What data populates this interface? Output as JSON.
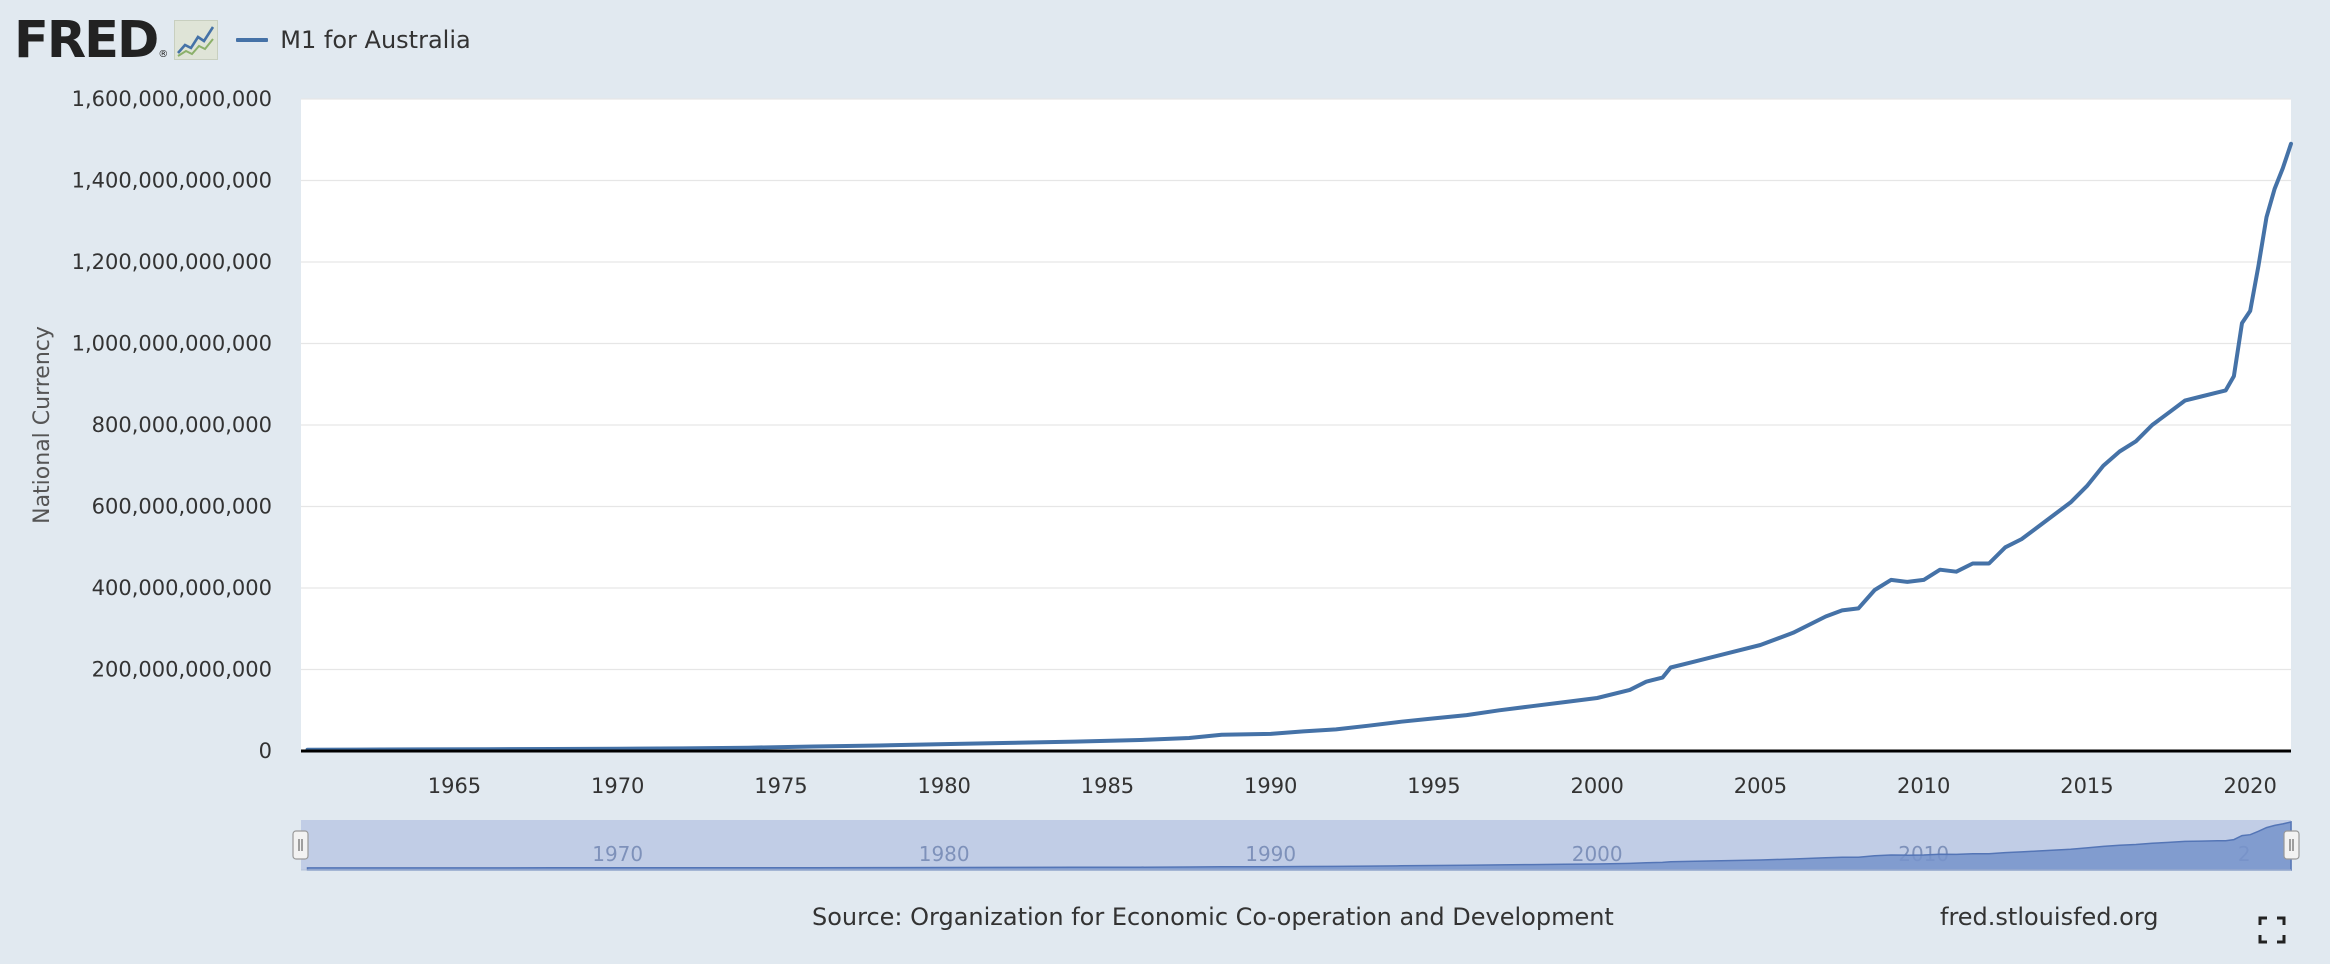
{
  "header": {
    "logo_text": "FRED",
    "logo_reg": "®",
    "logo_icon": "line-chart-icon",
    "legend_label": "M1 for Australia",
    "series_color": "#4572a7"
  },
  "footer": {
    "source": "Source: Organization for Economic Co-operation and Development",
    "url": "fred.stlouisfed.org",
    "fullscreen_icon": "fullscreen-icon"
  },
  "navigator": {
    "tick_labels": [
      "1970",
      "1980",
      "1990",
      "2000",
      "2010",
      "2"
    ],
    "handle_icon": "drag-handle-icon"
  },
  "chart_data": {
    "type": "line",
    "title": "",
    "xlabel": "",
    "ylabel": "National Currency",
    "x_range": [
      1960.3,
      2021.25
    ],
    "y_range": [
      0,
      1600000000000
    ],
    "y_ticks": [
      0,
      200000000000,
      400000000000,
      600000000000,
      800000000000,
      1000000000000,
      1200000000000,
      1400000000000,
      1600000000000
    ],
    "y_tick_labels": [
      "0",
      "200,000,000,000",
      "400,000,000,000",
      "600,000,000,000",
      "800,000,000,000",
      "1,000,000,000,000",
      "1,200,000,000,000",
      "1,400,000,000,000",
      "1,600,000,000,000"
    ],
    "x_ticks": [
      1965,
      1970,
      1975,
      1980,
      1985,
      1990,
      1995,
      2000,
      2005,
      2010,
      2015,
      2020
    ],
    "x_tick_labels": [
      "1965",
      "1970",
      "1975",
      "1980",
      "1985",
      "1990",
      "1995",
      "2000",
      "2005",
      "2010",
      "2015",
      "2020"
    ],
    "grid": "horizontal",
    "legend_position": "top-left",
    "colors": {
      "series": "#4572a7",
      "zero_line": "#000000"
    },
    "series": [
      {
        "name": "M1 for Australia",
        "x": [
          1960.5,
          1962,
          1964,
          1966,
          1968,
          1970,
          1972,
          1974,
          1976,
          1978,
          1980,
          1982,
          1984,
          1986,
          1987.5,
          1988.5,
          1990,
          1991,
          1992,
          1993,
          1994,
          1995,
          1996,
          1997,
          1998,
          1999,
          2000,
          2001,
          2001.5,
          2002,
          2002.25,
          2003,
          2004,
          2005,
          2006,
          2007,
          2007.5,
          2008,
          2008.5,
          2009,
          2009.5,
          2010,
          2010.5,
          2011,
          2011.5,
          2012,
          2012.5,
          2013,
          2013.5,
          2014,
          2014.5,
          2015,
          2015.5,
          2016,
          2016.5,
          2017,
          2017.5,
          2018,
          2018.5,
          2019,
          2019.25,
          2019.5,
          2019.75,
          2020,
          2020.25,
          2020.5,
          2020.75,
          2021,
          2021.25
        ],
        "y": [
          3000000000,
          3400000000,
          3900000000,
          4400000000,
          4900000000,
          5600000000,
          6500000000,
          8000000000,
          11000000000,
          13500000000,
          17000000000,
          20000000000,
          23000000000,
          27000000000,
          32000000000,
          40000000000,
          42000000000,
          48000000000,
          53000000000,
          62000000000,
          72000000000,
          80000000000,
          88000000000,
          100000000000,
          110000000000,
          120000000000,
          130000000000,
          150000000000,
          170000000000,
          180000000000,
          205000000000,
          220000000000,
          240000000000,
          260000000000,
          290000000000,
          330000000000,
          345000000000,
          350000000000,
          395000000000,
          420000000000,
          415000000000,
          420000000000,
          445000000000,
          440000000000,
          460000000000,
          460000000000,
          500000000000,
          520000000000,
          550000000000,
          580000000000,
          610000000000,
          650000000000,
          700000000000,
          735000000000,
          760000000000,
          800000000000,
          830000000000,
          860000000000,
          870000000000,
          880000000000,
          885000000000,
          920000000000,
          1050000000000,
          1080000000000,
          1190000000000,
          1310000000000,
          1380000000000,
          1430000000000,
          1490000000000
        ]
      }
    ]
  }
}
